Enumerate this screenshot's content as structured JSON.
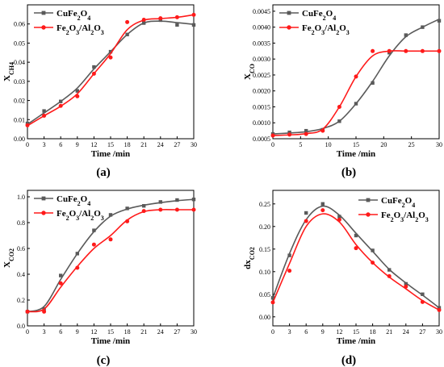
{
  "colors": {
    "series_a": "#5a5a5a",
    "series_b": "#ff1a1a",
    "axis": "#000000"
  },
  "chart_data": [
    {
      "type": "line",
      "panel_label": "(a)",
      "xlabel": "Time /min",
      "ylabel_main": "X",
      "ylabel_sub": "CH4",
      "xlim": [
        0,
        30
      ],
      "ylim": [
        0.0,
        0.07
      ],
      "xticks": [
        "0",
        "3",
        "6",
        "9",
        "12",
        "15",
        "18",
        "21",
        "24",
        "27",
        "30"
      ],
      "yticks": [
        "0.00",
        "0.01",
        "0.02",
        "0.03",
        "0.04",
        "0.05",
        "0.06"
      ],
      "x": [
        0,
        3,
        6,
        9,
        12,
        15,
        18,
        21,
        24,
        27,
        30
      ],
      "legend_position": "top-left",
      "series": [
        {
          "name_base": "CuFe",
          "name_sub1": "2",
          "name_mid": "O",
          "name_sub2": "4",
          "name_tail": "",
          "name_sub3": "",
          "marker": "square",
          "values": [
            0.008,
            0.0145,
            0.0195,
            0.025,
            0.0375,
            0.0455,
            0.0545,
            0.0605,
            0.062,
            0.0595,
            0.0595
          ],
          "curve": [
            0.0075,
            0.0135,
            0.0195,
            0.0265,
            0.0365,
            0.0455,
            0.0545,
            0.0605,
            0.0615,
            0.0607,
            0.0598
          ]
        },
        {
          "name_base": "Fe",
          "name_sub1": "2",
          "name_mid": "O",
          "name_sub2": "3",
          "name_tail": "/Al",
          "name_sub3": "2",
          "name_tail2": "O",
          "name_sub4": "3",
          "marker": "circle",
          "values": [
            0.007,
            0.012,
            0.0172,
            0.0222,
            0.034,
            0.0425,
            0.061,
            0.0622,
            0.063,
            0.0635,
            0.0648
          ],
          "curve": [
            0.0068,
            0.012,
            0.017,
            0.0235,
            0.034,
            0.0445,
            0.057,
            0.062,
            0.0628,
            0.0635,
            0.0648
          ]
        }
      ]
    },
    {
      "type": "line",
      "panel_label": "(b)",
      "xlabel": "Time /min",
      "ylabel_main": "X",
      "ylabel_sub": "CO",
      "xlim": [
        0,
        30
      ],
      "ylim": [
        0.0005,
        0.0047
      ],
      "xticks": [
        "0",
        "5",
        "10",
        "15",
        "20",
        "25",
        "30"
      ],
      "yticks": [
        "0.0005",
        "0.0010",
        "0.0015",
        "0.0020",
        "0.0025",
        "0.0030",
        "0.0035",
        "0.0040",
        "0.0045"
      ],
      "x": [
        0,
        3,
        6,
        9,
        12,
        15,
        18,
        21,
        24,
        27,
        30
      ],
      "legend_position": "top-left",
      "series": [
        {
          "name_base": "CuFe",
          "name_sub1": "2",
          "name_mid": "O",
          "name_sub2": "4",
          "name_tail": "",
          "name_sub3": "",
          "marker": "square",
          "values": [
            0.00065,
            0.0007,
            0.00075,
            0.00078,
            0.00105,
            0.0016,
            0.00225,
            0.0032,
            0.00375,
            0.004,
            0.0042
          ],
          "curve": [
            0.00065,
            0.00068,
            0.00072,
            0.00082,
            0.00105,
            0.0016,
            0.0023,
            0.0031,
            0.0037,
            0.004,
            0.00425
          ]
        },
        {
          "name_base": "Fe",
          "name_sub1": "2",
          "name_mid": "O",
          "name_sub2": "3",
          "name_tail": "/Al",
          "name_sub3": "2",
          "name_tail2": "O",
          "name_sub4": "3",
          "marker": "circle",
          "values": [
            0.0006,
            0.00063,
            0.00065,
            0.00075,
            0.0015,
            0.00245,
            0.00325,
            0.00325,
            0.00325,
            0.00325,
            0.00325
          ],
          "curve": [
            0.0006,
            0.00062,
            0.00066,
            0.0008,
            0.0015,
            0.00245,
            0.0031,
            0.00325,
            0.00325,
            0.00325,
            0.00325
          ]
        }
      ]
    },
    {
      "type": "line",
      "panel_label": "(c)",
      "xlabel": "Time /min",
      "ylabel_main": "X",
      "ylabel_sub": "CO2",
      "xlim": [
        0,
        30
      ],
      "ylim": [
        0.0,
        1.05
      ],
      "xticks": [
        "0",
        "3",
        "6",
        "9",
        "12",
        "15",
        "18",
        "21",
        "24",
        "27",
        "30"
      ],
      "yticks": [
        "0.0",
        "0.2",
        "0.4",
        "0.6",
        "0.8",
        "1.0"
      ],
      "x": [
        0,
        3,
        6,
        9,
        12,
        15,
        18,
        21,
        24,
        27,
        30
      ],
      "legend_position": "top-left",
      "series": [
        {
          "name_base": "CuFe",
          "name_sub1": "2",
          "name_mid": "O",
          "name_sub2": "4",
          "name_tail": "",
          "name_sub3": "",
          "marker": "square",
          "values": [
            0.11,
            0.13,
            0.39,
            0.56,
            0.74,
            0.86,
            0.91,
            0.93,
            0.96,
            0.975,
            0.98
          ],
          "curve": [
            0.11,
            0.15,
            0.36,
            0.56,
            0.73,
            0.85,
            0.905,
            0.935,
            0.955,
            0.97,
            0.98
          ]
        },
        {
          "name_base": "Fe",
          "name_sub1": "2",
          "name_mid": "O",
          "name_sub2": "3",
          "name_tail": "/Al",
          "name_sub3": "2",
          "name_tail2": "O",
          "name_sub4": "3",
          "marker": "circle",
          "values": [
            0.11,
            0.11,
            0.33,
            0.45,
            0.63,
            0.67,
            0.81,
            0.89,
            0.9,
            0.9,
            0.9
          ],
          "curve": [
            0.11,
            0.13,
            0.3,
            0.46,
            0.6,
            0.7,
            0.82,
            0.885,
            0.9,
            0.9,
            0.9
          ]
        }
      ]
    },
    {
      "type": "line",
      "panel_label": "(d)",
      "xlabel": "Time /min",
      "ylabel_main": "dx",
      "ylabel_sub": "CO2",
      "xlim": [
        0,
        30
      ],
      "ylim": [
        -0.02,
        0.28
      ],
      "xticks": [
        "0",
        "3",
        "6",
        "9",
        "12",
        "15",
        "18",
        "21",
        "24",
        "27",
        "30"
      ],
      "yticks": [
        "0.00",
        "0.05",
        "0.10",
        "0.15",
        "0.20",
        "0.25"
      ],
      "x": [
        0,
        3,
        6,
        9,
        12,
        15,
        18,
        21,
        24,
        27,
        30
      ],
      "legend_position": "top-right",
      "series": [
        {
          "name_base": "CuFe",
          "name_sub1": "2",
          "name_mid": "O",
          "name_sub2": "4",
          "name_tail": "",
          "name_sub3": "",
          "marker": "square",
          "values": [
            0.042,
            0.136,
            0.23,
            0.25,
            0.222,
            0.18,
            0.147,
            0.104,
            0.073,
            0.05,
            0.02
          ],
          "curve": [
            0.042,
            0.14,
            0.215,
            0.245,
            0.225,
            0.185,
            0.145,
            0.105,
            0.075,
            0.048,
            0.02
          ]
        },
        {
          "name_base": "Fe",
          "name_sub1": "2",
          "name_mid": "O",
          "name_sub2": "3",
          "name_tail": "/Al",
          "name_sub3": "2",
          "name_tail2": "O",
          "name_sub4": "3",
          "marker": "circle",
          "values": [
            0.032,
            0.102,
            0.212,
            0.236,
            0.215,
            0.152,
            0.12,
            0.09,
            0.067,
            0.033,
            0.015
          ],
          "curve": [
            0.032,
            0.118,
            0.2,
            0.228,
            0.21,
            0.16,
            0.12,
            0.088,
            0.062,
            0.036,
            0.015
          ]
        }
      ]
    }
  ]
}
